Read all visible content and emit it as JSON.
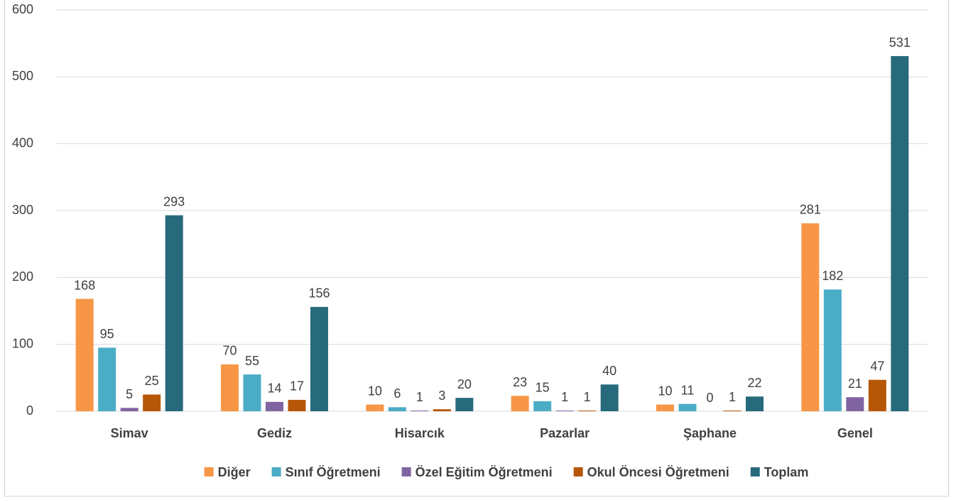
{
  "chart_data": {
    "type": "bar",
    "categories": [
      "Simav",
      "Gediz",
      "Hisarcık",
      "Pazarlar",
      "Şaphane",
      "Genel"
    ],
    "series": [
      {
        "name": "Diğer",
        "color": "#f79646",
        "values": [
          168,
          70,
          10,
          23,
          10,
          281
        ]
      },
      {
        "name": "Sınıf Öğretmeni",
        "color": "#4bacc6",
        "values": [
          95,
          55,
          6,
          15,
          11,
          182
        ]
      },
      {
        "name": "Özel Eğitim Öğretmeni",
        "color": "#8064a2",
        "values": [
          5,
          14,
          1,
          1,
          0,
          21
        ]
      },
      {
        "name": "Okul Öncesi Öğretmeni",
        "color": "#b65708",
        "values": [
          25,
          17,
          3,
          1,
          1,
          47
        ]
      },
      {
        "name": "Toplam",
        "color": "#276a7c",
        "values": [
          293,
          156,
          20,
          40,
          22,
          531
        ]
      }
    ],
    "ylim": [
      0,
      600
    ],
    "yticks": [
      0,
      100,
      200,
      300,
      400,
      500,
      600
    ],
    "grid": true,
    "legend": "bottom"
  }
}
